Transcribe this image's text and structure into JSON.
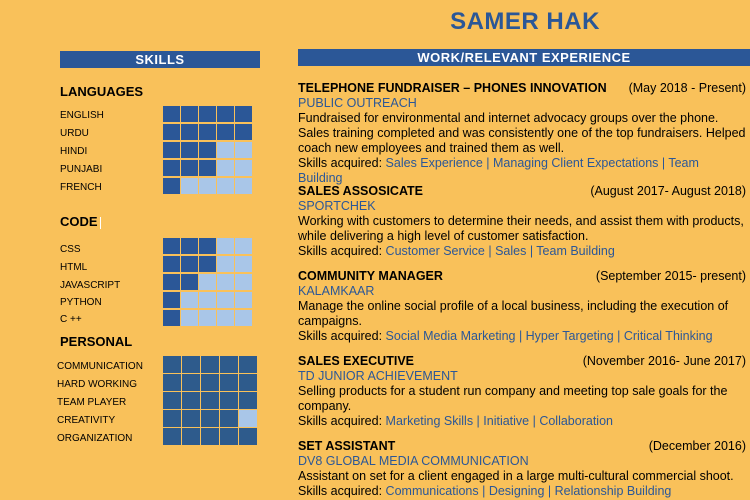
{
  "name": "SAMER HAK",
  "skills_header": "SKILLS",
  "work_header": "WORK/RELEVANT EXPERIENCE",
  "colors": {
    "background": "#F9C15A",
    "accent": "#2B5797",
    "empty_cell": "#A9C6E8"
  },
  "skill_sections": [
    {
      "title": "LANGUAGES",
      "items": [
        {
          "label": "ENGLISH",
          "level": 5
        },
        {
          "label": "URDU",
          "level": 5
        },
        {
          "label": "HINDI",
          "level": 3
        },
        {
          "label": "PUNJABI",
          "level": 3
        },
        {
          "label": "FRENCH",
          "level": 1
        }
      ]
    },
    {
      "title": "CODE",
      "items": [
        {
          "label": "CSS",
          "level": 3
        },
        {
          "label": "HTML",
          "level": 3
        },
        {
          "label": "JAVASCRIPT",
          "level": 2
        },
        {
          "label": "PYTHON",
          "level": 1
        },
        {
          "label": "C ++",
          "level": 1
        }
      ]
    },
    {
      "title": "PERSONAL",
      "items": [
        {
          "label": "COMMUNICATION",
          "level": 5
        },
        {
          "label": "HARD WORKING",
          "level": 5
        },
        {
          "label": "TEAM PLAYER",
          "level": 5
        },
        {
          "label": "CREATIVITY",
          "level": 4
        },
        {
          "label": "ORGANIZATION",
          "level": 5
        }
      ]
    }
  ],
  "jobs": [
    {
      "title": "TELEPHONE FUNDRAISER – PHONES INNOVATION",
      "date": "(May 2018 - Present)",
      "company": "PUBLIC OUTREACH",
      "description": "Fundraised for environmental and internet advocacy groups over the phone. Sales training completed and was consistently one of the top fundraisers. Helped coach new employees and trained them as well.",
      "skills_label": "Skills acquired: ",
      "skills": "Sales Experience | Managing Client Expectations | Team Building"
    },
    {
      "title": "SALES ASSOSICATE",
      "date": "(August 2017- August 2018)",
      "company": "SPORTCHEK",
      "description": "Working with customers to determine their needs, and assist them with products, while delivering a high level of customer satisfaction.",
      "skills_label": "Skills acquired: ",
      "skills": "Customer Service | Sales | Team Building"
    },
    {
      "title": "COMMUNITY MANAGER",
      "date": "(September 2015- present)",
      "company": "KALAMKAAR",
      "description": "Manage the online social profile of a local business, including the execution of campaigns.",
      "skills_label": "Skills acquired: ",
      "skills": "Social Media Marketing | Hyper Targeting | Critical Thinking"
    },
    {
      "title": "SALES EXECUTIVE",
      "date": "(November 2016- June 2017)",
      "company": "TD JUNIOR ACHIEVEMENT",
      "description": "Selling products for a student run company and meeting top sale goals for the company.",
      "skills_label": "Skills acquired: ",
      "skills": "Marketing Skills | Initiative | Collaboration"
    },
    {
      "title": "SET ASSISTANT",
      "date": "(December 2016)",
      "company": "DV8 GLOBAL MEDIA COMMUNICATION",
      "description": "Assistant on set for a client engaged in a large multi-cultural commercial shoot.",
      "skills_label": "Skills acquired: ",
      "skills": "Communications | Designing | Relationship Building"
    }
  ]
}
